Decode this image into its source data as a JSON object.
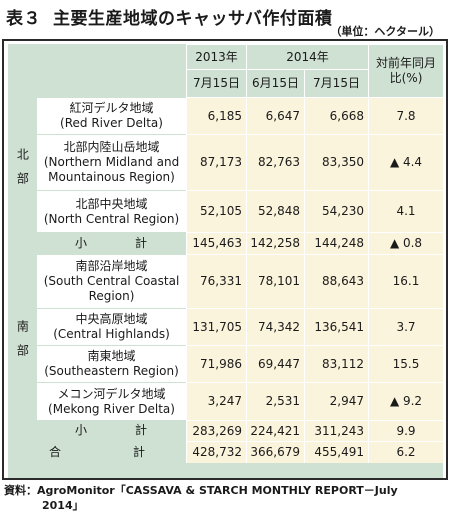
{
  "title": {
    "number": "表３",
    "text": "主要生産地域のキャッサバ作付面積"
  },
  "unit": "（単位：ヘクタール）",
  "header": {
    "year1": "2013年",
    "year2": "2014年",
    "change": "対前年同月比(%)",
    "date1": "7月15日",
    "date2": "6月15日",
    "date3": "7月15日"
  },
  "regions": {
    "north": "北部",
    "south": "南部"
  },
  "rows": [
    {
      "name_ja": "紅河デルタ地域",
      "name_en": "(Red River Delta)",
      "v2013": "6,185",
      "jun": "6,647",
      "jul": "6,668",
      "chg": "7.8"
    },
    {
      "name_ja": "北部内陸山岳地域",
      "name_en": "(Northern Midland and Mountainous Region)",
      "v2013": "87,173",
      "jun": "82,763",
      "jul": "83,350",
      "chg": "▲ 4.4"
    },
    {
      "name_ja": "北部中央地域",
      "name_en": "(North Central Region)",
      "v2013": "52,105",
      "jun": "52,848",
      "jul": "54,230",
      "chg": "4.1"
    },
    {
      "name_ja": "小　計",
      "v2013": "145,463",
      "jun": "142,258",
      "jul": "144,248",
      "chg": "▲ 0.8"
    },
    {
      "name_ja": "南部沿岸地域",
      "name_en": "(South Central Coastal Region)",
      "v2013": "76,331",
      "jun": "78,101",
      "jul": "88,643",
      "chg": "16.1"
    },
    {
      "name_ja": "中央高原地域",
      "name_en": "(Central Highlands)",
      "v2013": "131,705",
      "jun": "74,342",
      "jul": "136,541",
      "chg": "3.7"
    },
    {
      "name_ja": "南東地域",
      "name_en": "(Southeastern Region)",
      "v2013": "71,986",
      "jun": "69,447",
      "jul": "83,112",
      "chg": "15.5"
    },
    {
      "name_ja": "メコン河デルタ地域",
      "name_en": "(Mekong River Delta)",
      "v2013": "3,247",
      "jun": "2,531",
      "jul": "2,947",
      "chg": "▲ 9.2"
    },
    {
      "name_ja": "小　計",
      "v2013": "283,269",
      "jun": "224,421",
      "jul": "311,243",
      "chg": "9.9"
    },
    {
      "name_ja": "合　計",
      "v2013": "428,732",
      "jun": "366,679",
      "jul": "455,491",
      "chg": "6.2"
    }
  ],
  "source": {
    "line1": "資料：AgroMonitor「CASSAVA & STARCH MONTHLY REPORT－July",
    "line2": "2014」"
  }
}
